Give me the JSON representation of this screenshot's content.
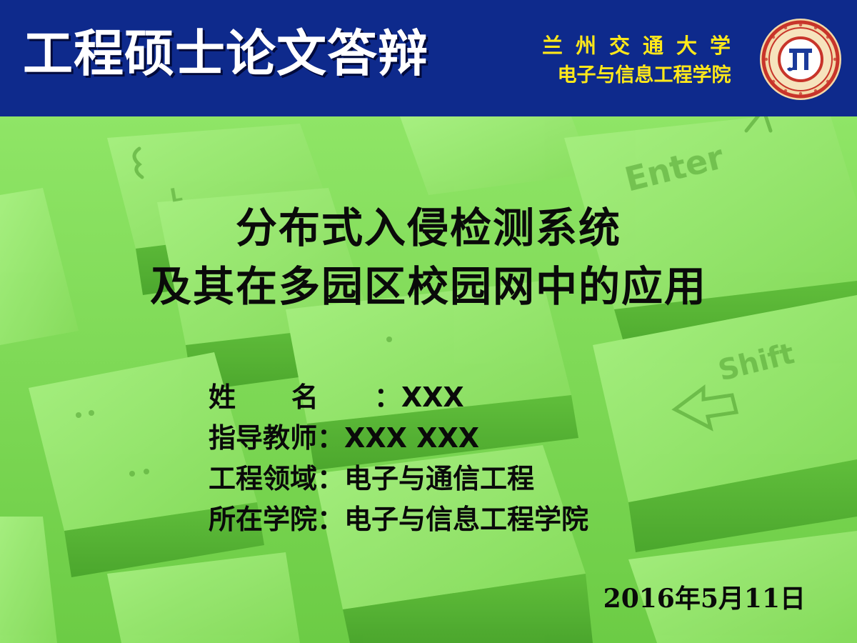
{
  "header": {
    "title": "工程硕士论文答辩",
    "university": "兰州交通大学",
    "school": "电子与信息工程学院",
    "colors": {
      "band": "#0e2a8c",
      "title": "#ffffff",
      "school_text": "#ffe81a",
      "seal_ring": "#c8342a"
    }
  },
  "seal": {
    "icon": "university-seal-icon"
  },
  "slide": {
    "title_lines": [
      "分布式入侵检测系统",
      "及其在多园区校园网中的应用"
    ],
    "info": [
      {
        "label": "姓名",
        "value": "XXX"
      },
      {
        "label": "指导教师",
        "value": "XXX XXX"
      },
      {
        "label": "工程领域",
        "value": "电子与通信工程"
      },
      {
        "label": "所在学院",
        "value": "电子与信息工程学院"
      }
    ],
    "separator": "：",
    "date": "2016年5月11日",
    "background_color": "#7ddb55"
  }
}
